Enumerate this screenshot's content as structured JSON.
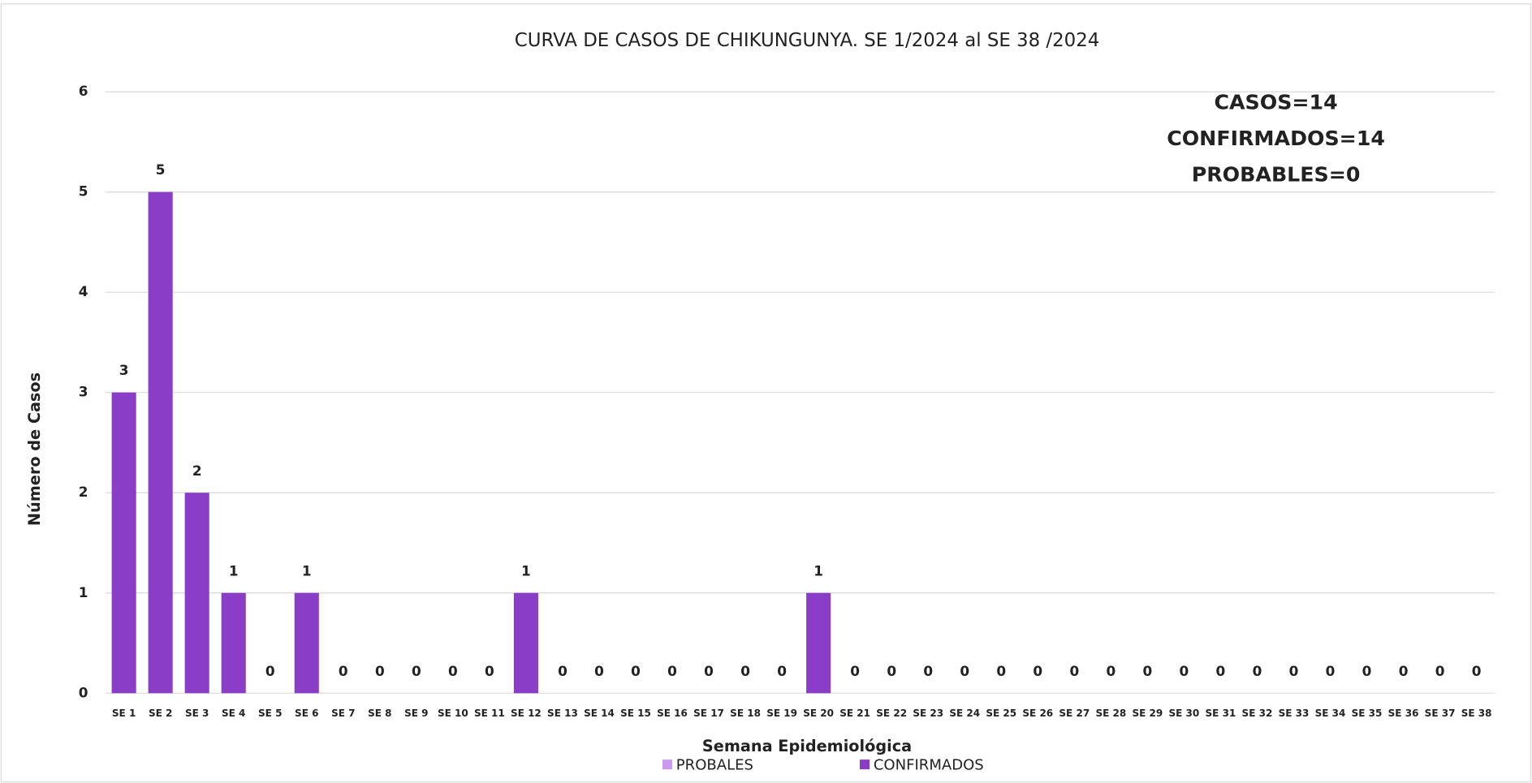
{
  "chart_data": {
    "type": "stacked_bar",
    "title": "CURVA DE CASOS DE CHIKUNGUNYA. SE 1/2024 al SE 38 /2024",
    "x_label": "Semana Epidemiológica",
    "y_label": "Número de Casos",
    "annotations": [
      "CASOS=14",
      "CONFIRMADOS=14",
      "PROBABLES=0"
    ],
    "categories": [
      "SE 1",
      "SE 2",
      "SE 3",
      "SE 4",
      "SE 5",
      "SE 6",
      "SE 7",
      "SE 8",
      "SE 9",
      "SE 10",
      "SE 11",
      "SE 12",
      "SE 13",
      "SE 14",
      "SE 15",
      "SE 16",
      "SE 17",
      "SE 18",
      "SE 19",
      "SE 20",
      "SE 21",
      "SE 22",
      "SE 23",
      "SE 24",
      "SE 25",
      "SE 26",
      "SE 27",
      "SE 28",
      "SE 29",
      "SE 30",
      "SE 31",
      "SE 32",
      "SE 33",
      "SE 34",
      "SE 35",
      "SE 36",
      "SE 37",
      "SE 38"
    ],
    "series": [
      {
        "name": "PROBALES",
        "color": "#cc99f0",
        "values": [
          0,
          0,
          0,
          0,
          0,
          0,
          0,
          0,
          0,
          0,
          0,
          0,
          0,
          0,
          0,
          0,
          0,
          0,
          0,
          0,
          0,
          0,
          0,
          0,
          0,
          0,
          0,
          0,
          0,
          0,
          0,
          0,
          0,
          0,
          0,
          0,
          0,
          0
        ]
      },
      {
        "name": "CONFIRMADOS",
        "color": "#8a3dc6",
        "values": [
          3,
          5,
          2,
          1,
          0,
          1,
          0,
          0,
          0,
          0,
          0,
          1,
          0,
          0,
          0,
          0,
          0,
          0,
          0,
          1,
          0,
          0,
          0,
          0,
          0,
          0,
          0,
          0,
          0,
          0,
          0,
          0,
          0,
          0,
          0,
          0,
          0,
          0
        ]
      }
    ],
    "ylim": [
      0,
      6
    ],
    "yticks": [
      0,
      1,
      2,
      3,
      4,
      5,
      6
    ],
    "grid": true
  }
}
